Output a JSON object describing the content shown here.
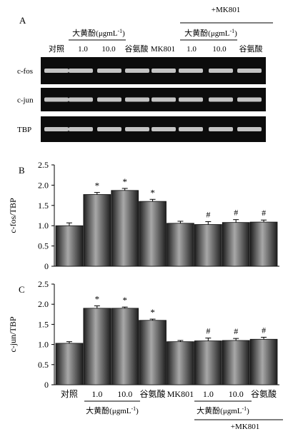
{
  "panel_a": {
    "label": "A",
    "mk801_group_label": "+MK801",
    "dahuangfen_label": "大黄酚(μgmL",
    "dahuangfen_sup": "-1",
    "dahuangfen_close": ")",
    "lanes": [
      "对照",
      "1.0",
      "10.0",
      "谷氨酸",
      "MK801",
      "1.0",
      "10.0",
      "谷氨酸"
    ],
    "genes": [
      "c-fos",
      "c-jun",
      "TBP"
    ]
  },
  "colors": {
    "bar_dark": "#1e1e1e",
    "bar_light": "#a8a8a8",
    "gel_bg": "#0c0c0c",
    "band": "#d8d8d8"
  },
  "chart_data": [
    {
      "type": "bar",
      "panel": "B",
      "ylabel": "c-fos/TBP",
      "ylim": [
        0,
        2.5
      ],
      "yticks": [
        "0",
        "0.5",
        "1.0",
        "1.5",
        "2.0",
        "2.5"
      ],
      "categories": [
        "对照",
        "1.0",
        "10.0",
        "谷氨酸",
        "MK801",
        "1.0",
        "10.0",
        "谷氨酸"
      ],
      "values": [
        1.0,
        1.77,
        1.87,
        1.6,
        1.06,
        1.03,
        1.08,
        1.09
      ],
      "errors": [
        0.07,
        0.05,
        0.05,
        0.05,
        0.05,
        0.07,
        0.07,
        0.05
      ],
      "annotations": [
        "",
        "*",
        "*",
        "*",
        "",
        "#",
        "#",
        "#"
      ]
    },
    {
      "type": "bar",
      "panel": "C",
      "ylabel": "c-jun/TBP",
      "ylim": [
        0,
        2.5
      ],
      "yticks": [
        "0",
        "0.5",
        "1.0",
        "1.5",
        "2.0",
        "2.5"
      ],
      "categories": [
        "对照",
        "1.0",
        "10.0",
        "谷氨酸",
        "MK801",
        "1.0",
        "10.0",
        "谷氨酸"
      ],
      "values": [
        1.03,
        1.9,
        1.9,
        1.6,
        1.07,
        1.09,
        1.1,
        1.13
      ],
      "errors": [
        0.04,
        0.06,
        0.03,
        0.03,
        0.03,
        0.07,
        0.05,
        0.05
      ],
      "annotations": [
        "",
        "*",
        "*",
        "*",
        "",
        "#",
        "#",
        "#"
      ]
    }
  ]
}
